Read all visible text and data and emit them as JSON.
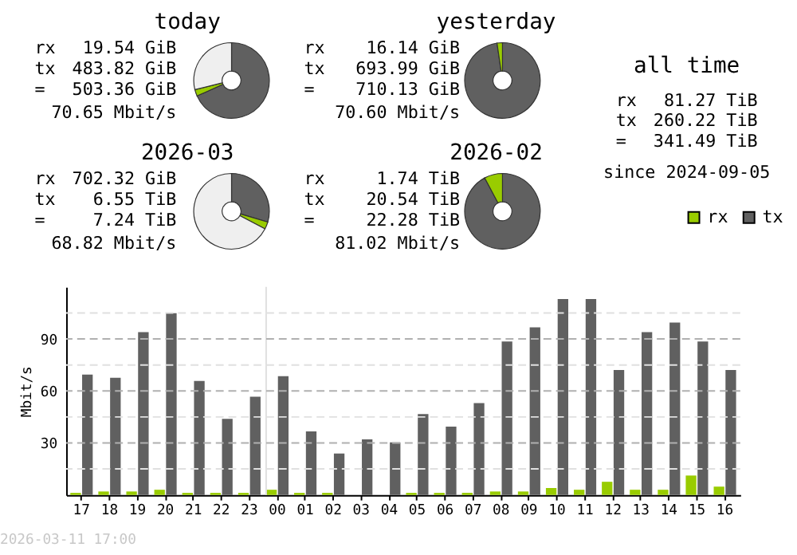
{
  "chart_data": [
    {
      "type": "donut",
      "title": "today",
      "categories": [
        null,
        null,
        null
      ],
      "values": [
        68.3,
        2.8,
        28.9
      ],
      "colors": [
        "#606060",
        "#99cc00",
        "#efefef"
      ],
      "annotations": [
        "rx",
        "19.54 GiB",
        "tx",
        "483.82 GiB",
        "=",
        "503.36 GiB",
        "70.65 Mbit/s"
      ]
    },
    {
      "type": "donut",
      "title": "2026-03",
      "categories": [
        null,
        null,
        null
      ],
      "values": [
        29.6,
        3.1,
        67.3
      ],
      "colors": [
        "#606060",
        "#99cc00",
        "#efefef"
      ],
      "annotations": [
        "rx",
        "702.32 GiB",
        "tx",
        "6.55 TiB",
        "=",
        "7.24 TiB",
        "68.82 Mbit/s"
      ]
    },
    {
      "type": "donut",
      "title": "yesterday",
      "categories": [
        null,
        null
      ],
      "values": [
        97.7,
        2.3
      ],
      "colors": [
        "#606060",
        "#99cc00"
      ],
      "annotations": [
        "rx",
        "16.14 GiB",
        "tx",
        "693.99 GiB",
        "=",
        "710.13 GiB",
        "70.60 Mbit/s"
      ]
    },
    {
      "type": "donut",
      "title": "2026-02",
      "categories": [
        null,
        null
      ],
      "values": [
        92.2,
        7.8
      ],
      "colors": [
        "#606060",
        "#99cc00"
      ],
      "annotations": [
        "rx",
        "1.74 TiB",
        "tx",
        "20.54 TiB",
        "=",
        "22.28 TiB",
        "81.02 Mbit/s"
      ]
    },
    {
      "type": "other",
      "title": "all time",
      "annotations": [
        "rx",
        "81.27 TiB",
        "tx",
        "260.22 TiB",
        "=",
        "341.49 TiB",
        "since 2024-09-05"
      ]
    },
    {
      "type": "bar",
      "ylabel": "Mbit/s",
      "categories": [
        "17",
        "18",
        "19",
        "20",
        "21",
        "22",
        "23",
        "00",
        "01",
        "02",
        "03",
        "04",
        "05",
        "06",
        "07",
        "08",
        "09",
        "10",
        "11",
        "12",
        "13",
        "14",
        "15",
        "16"
      ],
      "series": [
        {
          "name": "rx",
          "color": "#99cc00",
          "values": [
            1.2,
            2,
            2,
            3,
            1.2,
            1.2,
            1.2,
            3,
            1.2,
            1.2,
            0,
            0,
            1.2,
            1.2,
            1.2,
            2,
            2,
            4,
            3,
            7.6,
            3,
            3,
            11.2,
            4.8
          ]
        },
        {
          "name": "tx",
          "color": "#606060",
          "values": [
            69.4,
            67.6,
            93.9,
            104.8,
            65.8,
            43.9,
            56.7,
            68.5,
            36.7,
            23.9,
            32.1,
            30.3,
            46.7,
            39.4,
            53,
            88.5,
            96.7,
            113,
            113,
            72.1,
            93.9,
            99.4,
            88.5,
            72.1
          ]
        }
      ],
      "ylim": [
        0,
        120
      ],
      "yticks": [
        {
          "value": 15,
          "label": null
        },
        30,
        {
          "value": 45,
          "label": null
        },
        60,
        {
          "value": 75,
          "label": null
        },
        90,
        {
          "value": 105,
          "label": null
        }
      ],
      "grid": "y",
      "legend": "top right",
      "ref_lines": [
        {
          "axis": "x",
          "value": "00",
          "color": "#e0e0e0"
        }
      ],
      "annotations": [
        "2026-03-11 17:00"
      ]
    }
  ]
}
